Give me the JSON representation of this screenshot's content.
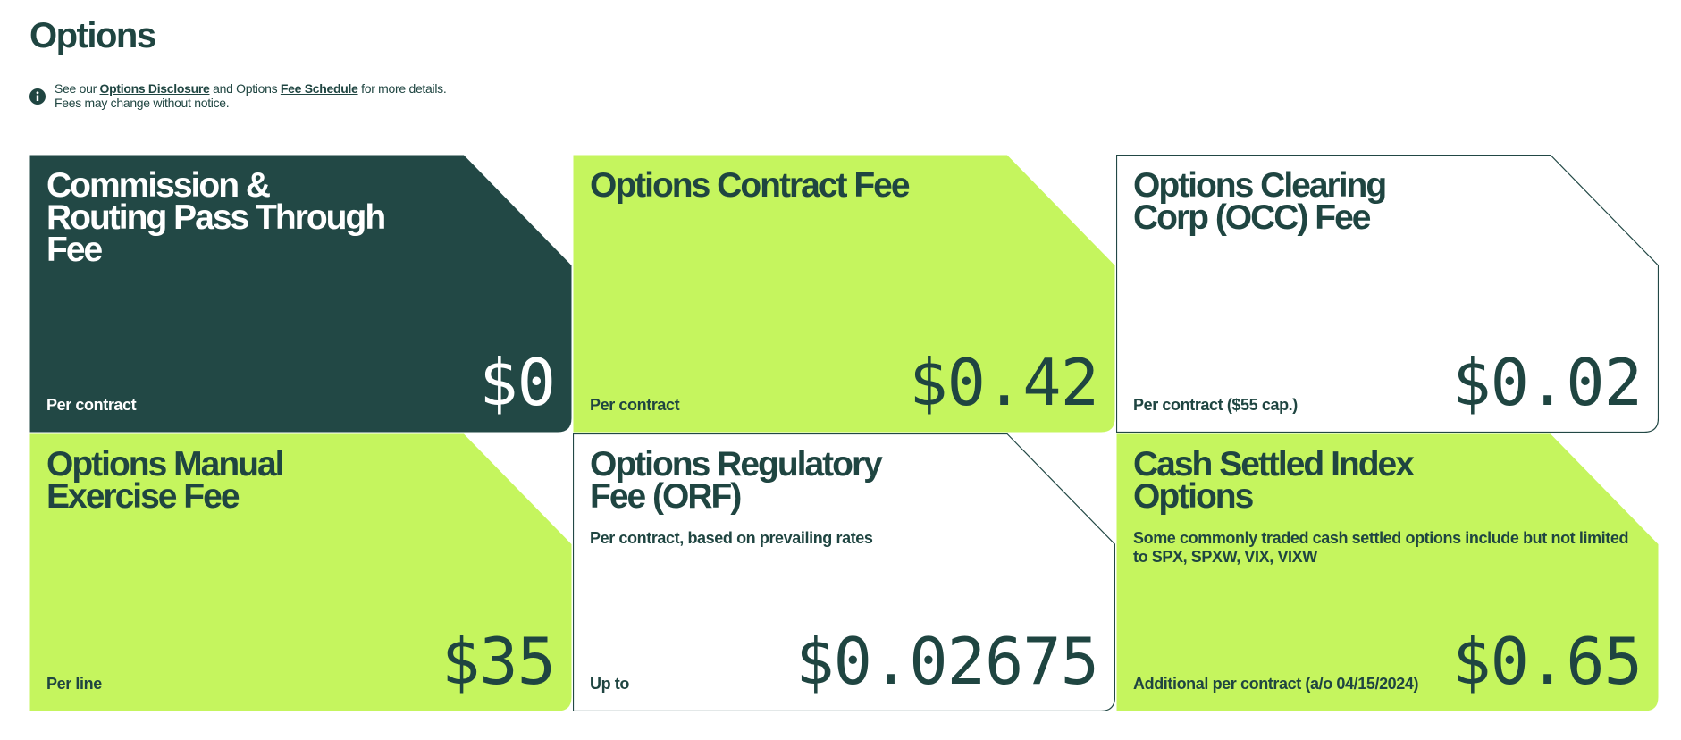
{
  "header": {
    "title": "Options"
  },
  "info": {
    "prefix": "See our",
    "link1": "Options Disclosure",
    "middle": "and Options",
    "link2": "Fee Schedule",
    "suffix": "for more details.",
    "line2": "Fees may change without notice."
  },
  "cards": [
    {
      "title": [
        "Commission &",
        "Routing Pass Through",
        "Fee"
      ],
      "price": "$0",
      "note": "Per contract",
      "color": "#224845"
    },
    {
      "title": [
        "Options Contract Fee"
      ],
      "price": "$0.42",
      "note": "Per contract",
      "color": "#c5f55e"
    },
    {
      "title": [
        "Options Clearing",
        "Corp (OCC) Fee"
      ],
      "price": "$0.02",
      "note": "Per contract ($55 cap.)",
      "color": "#ffffff"
    },
    {
      "title": [
        "Options Manual",
        "Exercise Fee"
      ],
      "price": "$35",
      "note": "Per line",
      "color": "#c5f55e"
    },
    {
      "title": [
        "Options Regulatory",
        "Fee (ORF)"
      ],
      "description": "Per contract, based on prevailing rates",
      "price": "$0.02675",
      "note": "Up to",
      "color": "#ffffff"
    },
    {
      "title": [
        "Cash Settled Index",
        "Options"
      ],
      "description": "Some commonly traded cash settled options include but not limited to SPX, SPXW, VIX, VIXW",
      "price": "$0.65",
      "note": "Additional per contract (a/o 04/15/2024)",
      "color": "#c5f55e"
    }
  ]
}
